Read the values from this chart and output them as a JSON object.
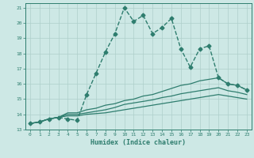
{
  "bg_color": "#cde8e5",
  "line_color": "#2e7d6e",
  "grid_color": "#aecfcb",
  "xlabel": "Humidex (Indice chaleur)",
  "xlim": [
    -0.5,
    23.5
  ],
  "ylim": [
    13,
    21.3
  ],
  "xticks": [
    0,
    1,
    2,
    3,
    4,
    5,
    6,
    7,
    8,
    9,
    10,
    11,
    12,
    13,
    14,
    15,
    16,
    17,
    18,
    19,
    20,
    21,
    22,
    23
  ],
  "yticks": [
    13,
    14,
    15,
    16,
    17,
    18,
    19,
    20,
    21
  ],
  "series": [
    {
      "x": [
        0,
        1,
        2,
        3,
        4,
        5,
        6,
        7,
        8,
        9,
        10,
        11,
        12,
        13,
        14,
        15,
        16,
        17,
        18,
        19,
        20,
        21,
        22,
        23
      ],
      "y": [
        13.4,
        13.5,
        13.7,
        13.8,
        13.7,
        13.6,
        15.3,
        16.7,
        18.1,
        19.3,
        21.0,
        20.1,
        20.5,
        19.3,
        19.7,
        20.3,
        18.3,
        17.1,
        18.3,
        18.5,
        16.4,
        16.0,
        15.9,
        15.6
      ],
      "marker": "D",
      "markersize": 2.5,
      "linewidth": 1.0,
      "linestyle": "--"
    },
    {
      "x": [
        0,
        1,
        2,
        3,
        4,
        5,
        6,
        7,
        8,
        9,
        10,
        11,
        12,
        13,
        14,
        15,
        16,
        17,
        18,
        19,
        20,
        21,
        22,
        23
      ],
      "y": [
        13.4,
        13.5,
        13.7,
        13.8,
        14.1,
        14.1,
        14.3,
        14.4,
        14.6,
        14.7,
        14.9,
        15.0,
        15.2,
        15.3,
        15.5,
        15.7,
        15.9,
        16.0,
        16.2,
        16.3,
        16.4,
        16.0,
        15.9,
        15.6
      ],
      "marker": null,
      "markersize": 0,
      "linewidth": 0.9,
      "linestyle": "-"
    },
    {
      "x": [
        0,
        1,
        2,
        3,
        4,
        5,
        6,
        7,
        8,
        9,
        10,
        11,
        12,
        13,
        14,
        15,
        16,
        17,
        18,
        19,
        20,
        21,
        22,
        23
      ],
      "y": [
        13.4,
        13.5,
        13.7,
        13.8,
        14.0,
        14.0,
        14.1,
        14.2,
        14.3,
        14.45,
        14.65,
        14.75,
        14.85,
        14.95,
        15.1,
        15.2,
        15.35,
        15.45,
        15.55,
        15.65,
        15.75,
        15.55,
        15.45,
        15.3
      ],
      "marker": null,
      "markersize": 0,
      "linewidth": 0.9,
      "linestyle": "-"
    },
    {
      "x": [
        0,
        1,
        2,
        3,
        4,
        5,
        6,
        7,
        8,
        9,
        10,
        11,
        12,
        13,
        14,
        15,
        16,
        17,
        18,
        19,
        20,
        21,
        22,
        23
      ],
      "y": [
        13.4,
        13.5,
        13.7,
        13.8,
        13.9,
        13.9,
        14.0,
        14.05,
        14.1,
        14.2,
        14.3,
        14.4,
        14.5,
        14.6,
        14.7,
        14.8,
        14.9,
        15.0,
        15.1,
        15.2,
        15.3,
        15.2,
        15.1,
        15.0
      ],
      "marker": null,
      "markersize": 0,
      "linewidth": 0.9,
      "linestyle": "-"
    }
  ]
}
